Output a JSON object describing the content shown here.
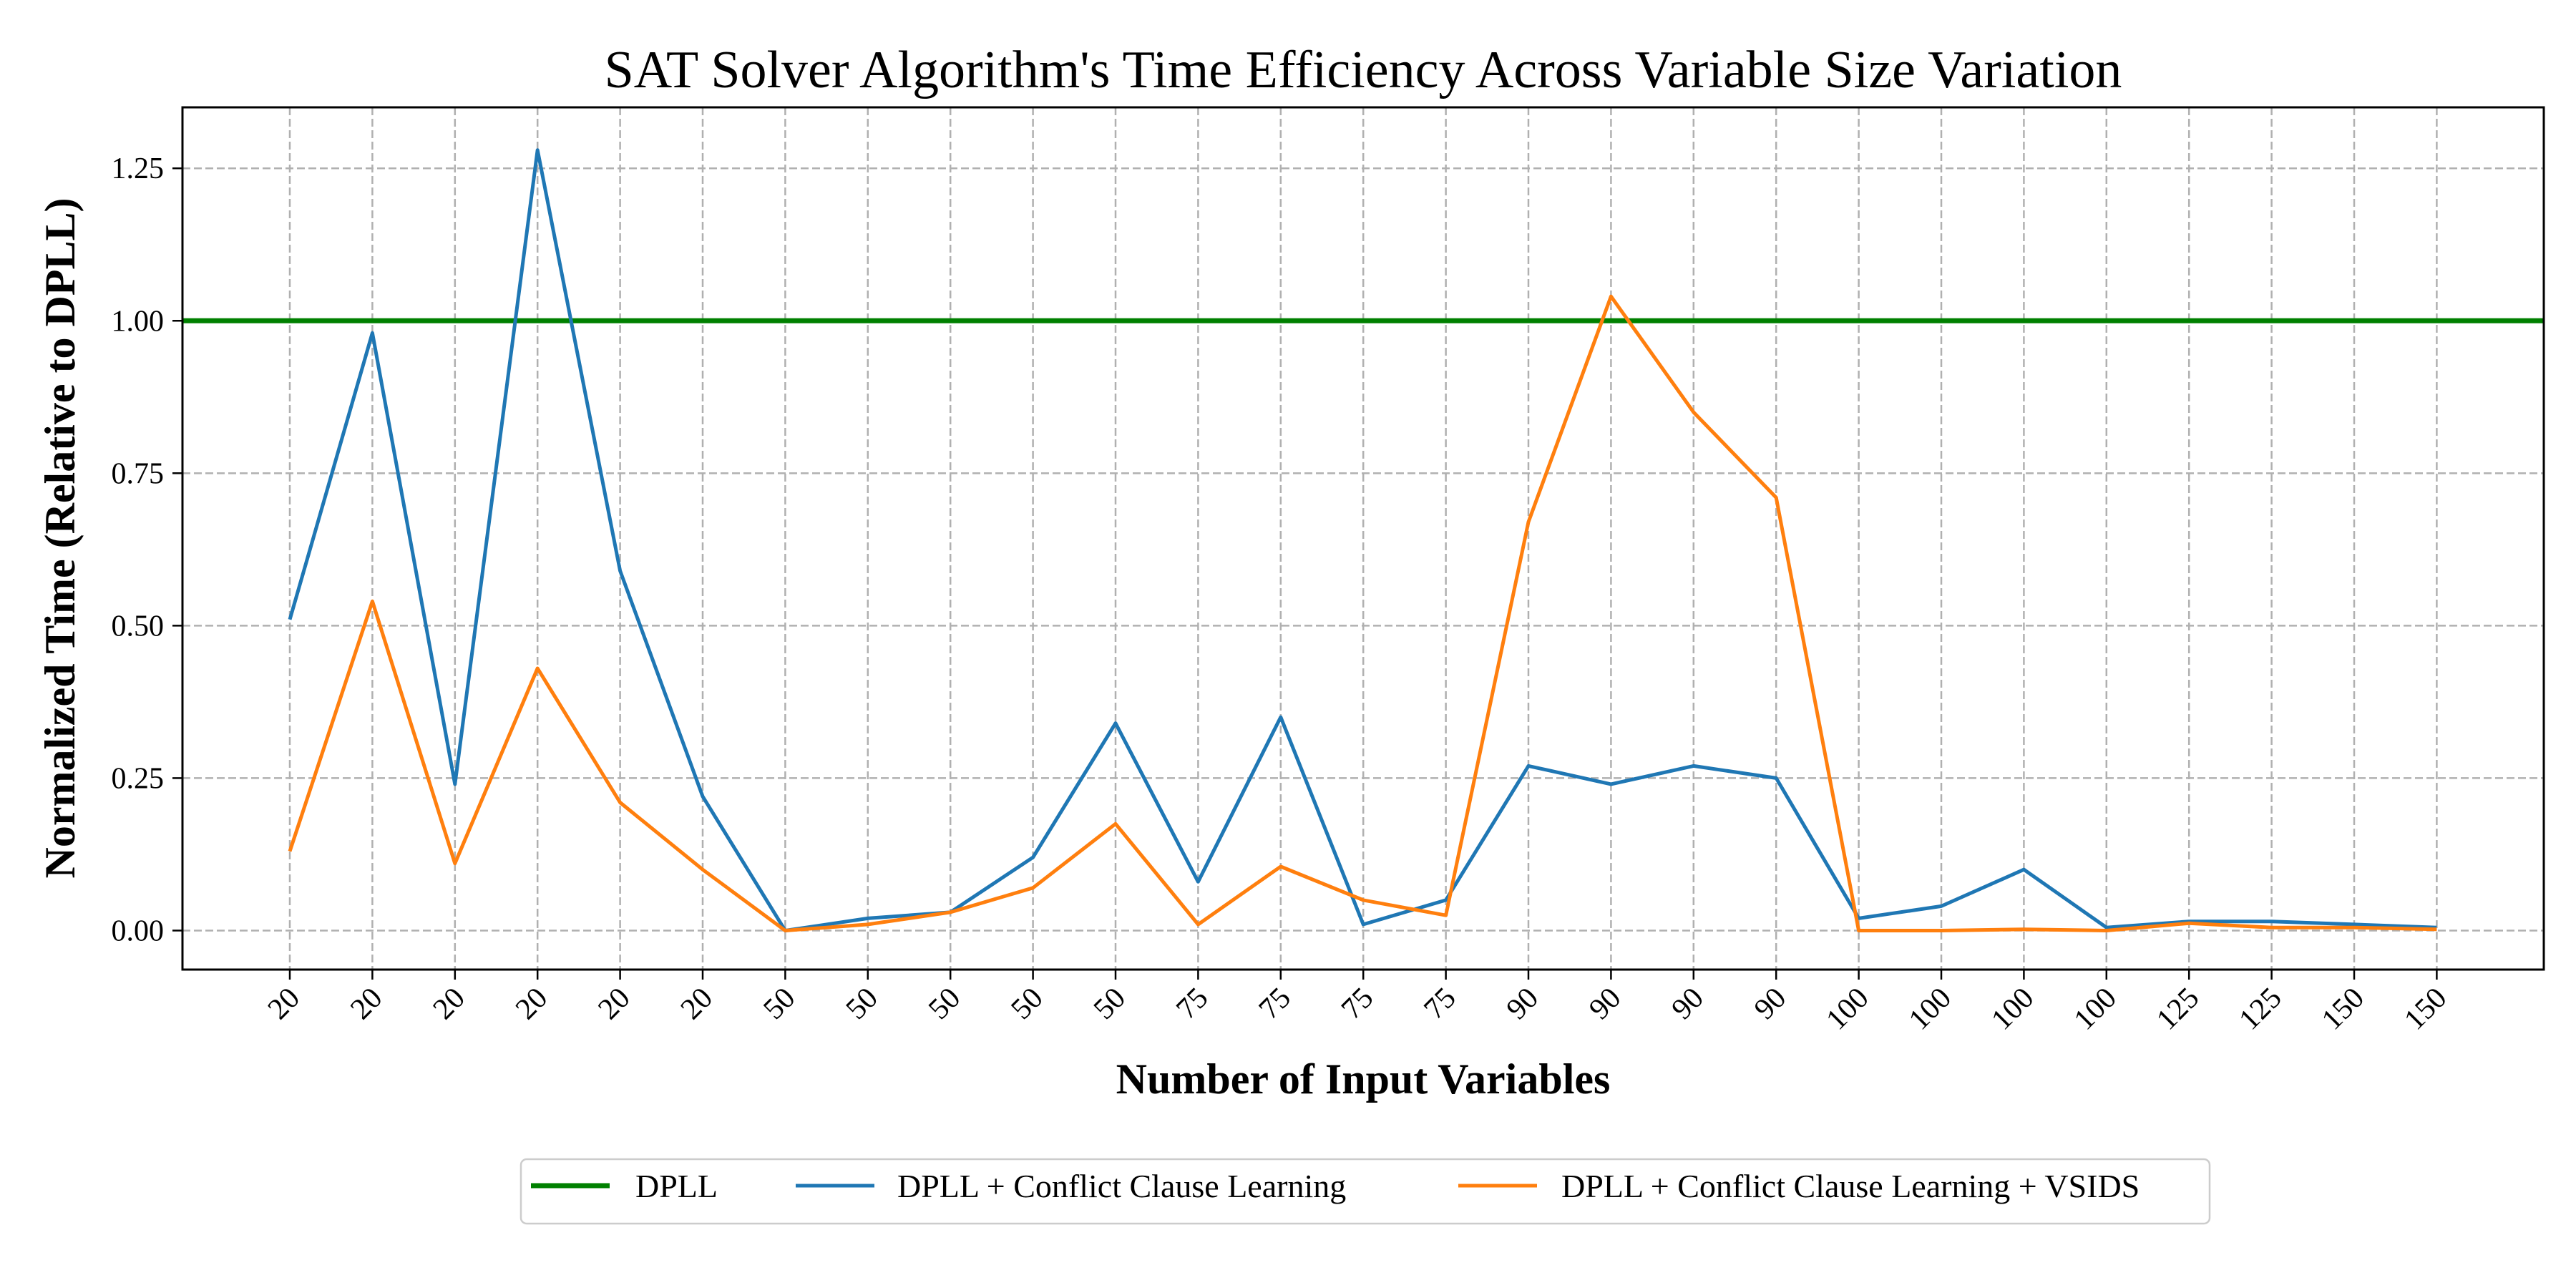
{
  "chart_data": {
    "type": "line",
    "title": "SAT Solver Algorithm's Time Efficiency Across Variable Size Variation",
    "xlabel": "Number of Input Variables",
    "ylabel": "Normalized Time (Relative to DPLL)",
    "x": [
      "20",
      "20",
      "20",
      "20",
      "20",
      "20",
      "50",
      "50",
      "50",
      "50",
      "50",
      "75",
      "75",
      "75",
      "75",
      "90",
      "90",
      "90",
      "90",
      "100",
      "100",
      "100",
      "100",
      "125",
      "125",
      "150",
      "150"
    ],
    "ylim": [
      -0.064,
      1.35
    ],
    "yticks": [
      "0.00",
      "0.25",
      "0.50",
      "0.75",
      "1.00",
      "1.25"
    ],
    "ytick_values": [
      0,
      0.25,
      0.5,
      0.75,
      1.0,
      1.25
    ],
    "grid": true,
    "legend_position": "bottom-center",
    "series": [
      {
        "name": "DPLL",
        "color": "#008000",
        "values": [
          1,
          1,
          1,
          1,
          1,
          1,
          1,
          1,
          1,
          1,
          1,
          1,
          1,
          1,
          1,
          1,
          1,
          1,
          1,
          1,
          1,
          1,
          1,
          1,
          1,
          1,
          1
        ]
      },
      {
        "name": "DPLL + Conflict Clause Learning",
        "color": "#1f77b4",
        "values": [
          0.51,
          0.98,
          0.24,
          1.28,
          0.59,
          0.22,
          0.0,
          0.02,
          0.03,
          0.12,
          0.34,
          0.08,
          0.35,
          0.01,
          0.05,
          0.27,
          0.24,
          0.27,
          0.25,
          0.02,
          0.04,
          0.1,
          0.005,
          0.015,
          0.015,
          0.01,
          0.005
        ]
      },
      {
        "name": "DPLL + Conflict Clause Learning + VSIDS",
        "color": "#ff7f0e",
        "values": [
          0.13,
          0.54,
          0.11,
          0.43,
          0.21,
          0.1,
          0.0,
          0.01,
          0.03,
          0.07,
          0.175,
          0.01,
          0.105,
          0.05,
          0.025,
          0.67,
          1.04,
          0.85,
          0.71,
          0.0,
          0.0,
          0.002,
          0.0,
          0.012,
          0.005,
          0.005,
          0.002
        ]
      }
    ]
  }
}
